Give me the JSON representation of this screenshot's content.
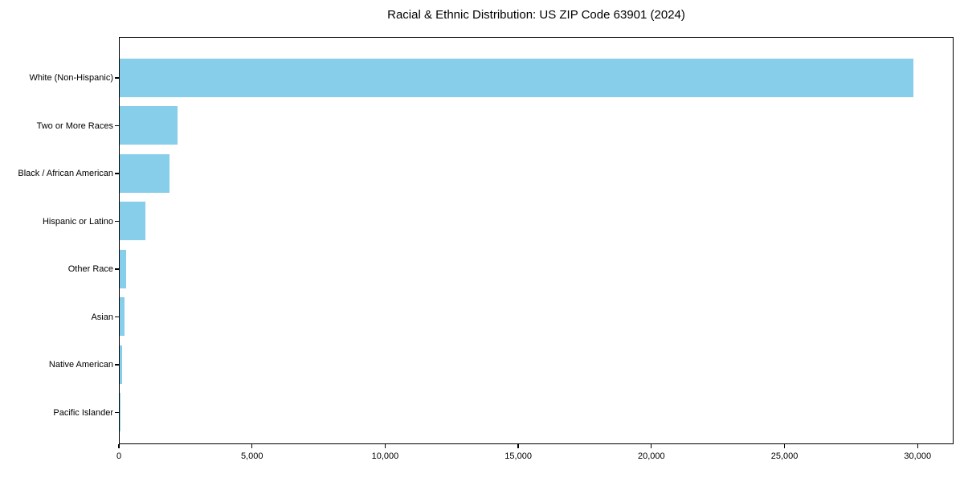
{
  "title": "Racial & Ethnic Distribution: US ZIP Code 63901 (2024)",
  "chart_data": {
    "type": "bar",
    "orientation": "horizontal",
    "title": "Racial & Ethnic Distribution: US ZIP Code 63901 (2024)",
    "xlabel": "",
    "ylabel": "",
    "categories": [
      "White (Non-Hispanic)",
      "Two or More Races",
      "Black / African American",
      "Hispanic or Latino",
      "Other Race",
      "Asian",
      "Native American",
      "Pacific Islander"
    ],
    "values": [
      29810,
      2170,
      1860,
      980,
      230,
      180,
      85,
      10
    ],
    "xlim": [
      0,
      31350
    ],
    "x_ticks": [
      0,
      5000,
      10000,
      15000,
      20000,
      25000,
      30000
    ],
    "x_tick_labels": [
      "0",
      "5,000",
      "10,000",
      "15,000",
      "20,000",
      "25,000",
      "30,000"
    ],
    "bar_color": "#87CEEB",
    "grid": false,
    "legend": null
  }
}
